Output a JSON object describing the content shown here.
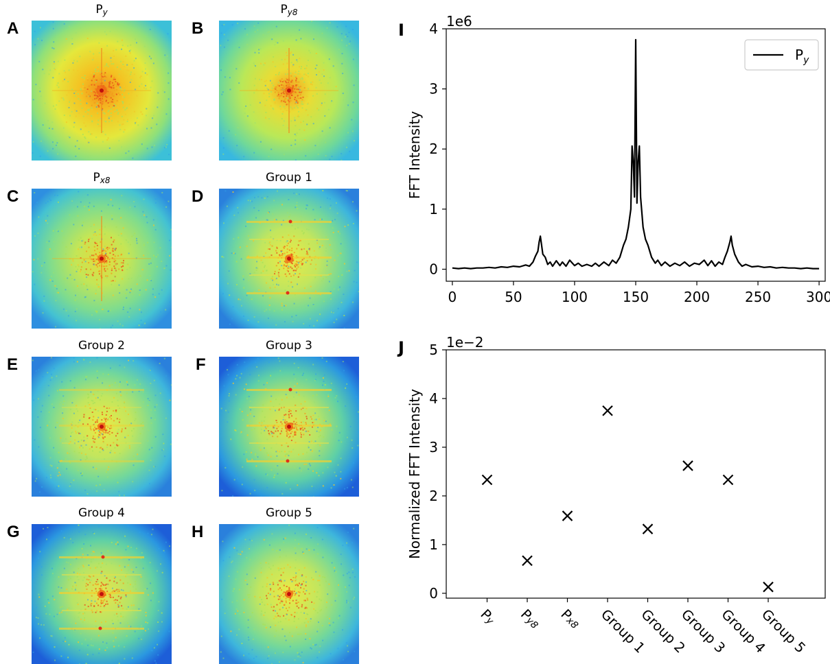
{
  "panels": [
    {
      "letter": "A",
      "title_main": "P",
      "title_sub": "y",
      "variant": "strong"
    },
    {
      "letter": "B",
      "title_main": "P",
      "title_sub": "y8",
      "variant": "mid"
    },
    {
      "letter": "C",
      "title_main": "P",
      "title_sub": "x8",
      "variant": "weak"
    },
    {
      "letter": "D",
      "title_main": "Group 1",
      "title_sub": "",
      "variant": "lines"
    },
    {
      "letter": "E",
      "title_main": "Group 2",
      "title_sub": "",
      "variant": "lines-faint"
    },
    {
      "letter": "F",
      "title_main": "Group 3",
      "title_sub": "",
      "variant": "lines-dark"
    },
    {
      "letter": "G",
      "title_main": "Group 4",
      "title_sub": "",
      "variant": "lines-dark"
    },
    {
      "letter": "H",
      "title_main": "Group 5",
      "title_sub": "",
      "variant": "center"
    }
  ],
  "chart_data": [
    {
      "panel_letter": "I",
      "type": "line",
      "title": "",
      "xlabel": "",
      "ylabel": "FFT Intensity",
      "y_scale_label": "1e6",
      "xlim": [
        -5,
        305
      ],
      "ylim": [
        -0.2,
        4.0
      ],
      "x_ticks": [
        0,
        50,
        100,
        150,
        200,
        250,
        300
      ],
      "y_ticks": [
        0,
        1,
        2,
        3,
        4
      ],
      "legend_position": "top-right",
      "series": [
        {
          "name": "P",
          "name_sub": "y",
          "color": "#000000",
          "points": [
            [
              0,
              0.02
            ],
            [
              5,
              0.01
            ],
            [
              10,
              0.02
            ],
            [
              15,
              0.01
            ],
            [
              20,
              0.02
            ],
            [
              25,
              0.02
            ],
            [
              30,
              0.03
            ],
            [
              35,
              0.02
            ],
            [
              40,
              0.04
            ],
            [
              45,
              0.03
            ],
            [
              50,
              0.05
            ],
            [
              55,
              0.04
            ],
            [
              60,
              0.07
            ],
            [
              63,
              0.05
            ],
            [
              66,
              0.12
            ],
            [
              68,
              0.22
            ],
            [
              70,
              0.3
            ],
            [
              71,
              0.45
            ],
            [
              72,
              0.55
            ],
            [
              73,
              0.4
            ],
            [
              74,
              0.25
            ],
            [
              76,
              0.2
            ],
            [
              78,
              0.08
            ],
            [
              80,
              0.12
            ],
            [
              82,
              0.05
            ],
            [
              85,
              0.14
            ],
            [
              88,
              0.06
            ],
            [
              90,
              0.12
            ],
            [
              93,
              0.05
            ],
            [
              96,
              0.15
            ],
            [
              100,
              0.06
            ],
            [
              103,
              0.1
            ],
            [
              106,
              0.05
            ],
            [
              110,
              0.08
            ],
            [
              114,
              0.05
            ],
            [
              117,
              0.1
            ],
            [
              120,
              0.05
            ],
            [
              124,
              0.12
            ],
            [
              128,
              0.06
            ],
            [
              131,
              0.15
            ],
            [
              134,
              0.1
            ],
            [
              137,
              0.2
            ],
            [
              140,
              0.4
            ],
            [
              142,
              0.5
            ],
            [
              144,
              0.7
            ],
            [
              146,
              1.0
            ],
            [
              147,
              2.05
            ],
            [
              148,
              1.8
            ],
            [
              149,
              1.2
            ],
            [
              150,
              3.82
            ],
            [
              151,
              1.1
            ],
            [
              152,
              1.8
            ],
            [
              153,
              2.05
            ],
            [
              154,
              1.2
            ],
            [
              156,
              0.7
            ],
            [
              158,
              0.5
            ],
            [
              160,
              0.4
            ],
            [
              163,
              0.2
            ],
            [
              166,
              0.1
            ],
            [
              168,
              0.15
            ],
            [
              171,
              0.06
            ],
            [
              174,
              0.12
            ],
            [
              178,
              0.05
            ],
            [
              182,
              0.1
            ],
            [
              186,
              0.06
            ],
            [
              190,
              0.12
            ],
            [
              194,
              0.05
            ],
            [
              198,
              0.1
            ],
            [
              202,
              0.08
            ],
            [
              206,
              0.15
            ],
            [
              209,
              0.06
            ],
            [
              212,
              0.14
            ],
            [
              215,
              0.05
            ],
            [
              218,
              0.12
            ],
            [
              221,
              0.08
            ],
            [
              223,
              0.2
            ],
            [
              225,
              0.3
            ],
            [
              227,
              0.45
            ],
            [
              228,
              0.55
            ],
            [
              229,
              0.4
            ],
            [
              231,
              0.25
            ],
            [
              234,
              0.12
            ],
            [
              237,
              0.05
            ],
            [
              240,
              0.08
            ],
            [
              245,
              0.04
            ],
            [
              250,
              0.05
            ],
            [
              255,
              0.03
            ],
            [
              260,
              0.04
            ],
            [
              265,
              0.02
            ],
            [
              270,
              0.03
            ],
            [
              275,
              0.02
            ],
            [
              280,
              0.02
            ],
            [
              285,
              0.01
            ],
            [
              290,
              0.02
            ],
            [
              295,
              0.01
            ],
            [
              300,
              0.01
            ]
          ]
        }
      ]
    },
    {
      "panel_letter": "J",
      "type": "scatter",
      "title": "",
      "xlabel": "",
      "ylabel": "Normalized FFT Intensity",
      "y_scale_label": "1e−2",
      "ylim": [
        -0.1,
        5.0
      ],
      "y_ticks": [
        0,
        1,
        2,
        3,
        4,
        5
      ],
      "marker": "x",
      "categories": [
        {
          "main": "P",
          "sub": "y"
        },
        {
          "main": "P",
          "sub": "y8"
        },
        {
          "main": "P",
          "sub": "x8"
        },
        {
          "main": "Group 1",
          "sub": ""
        },
        {
          "main": "Group 2",
          "sub": ""
        },
        {
          "main": "Group 3",
          "sub": ""
        },
        {
          "main": "Group 4",
          "sub": ""
        },
        {
          "main": "Group 5",
          "sub": ""
        }
      ],
      "values": [
        2.33,
        0.67,
        1.59,
        3.75,
        1.32,
        2.62,
        2.33,
        0.13
      ]
    }
  ]
}
